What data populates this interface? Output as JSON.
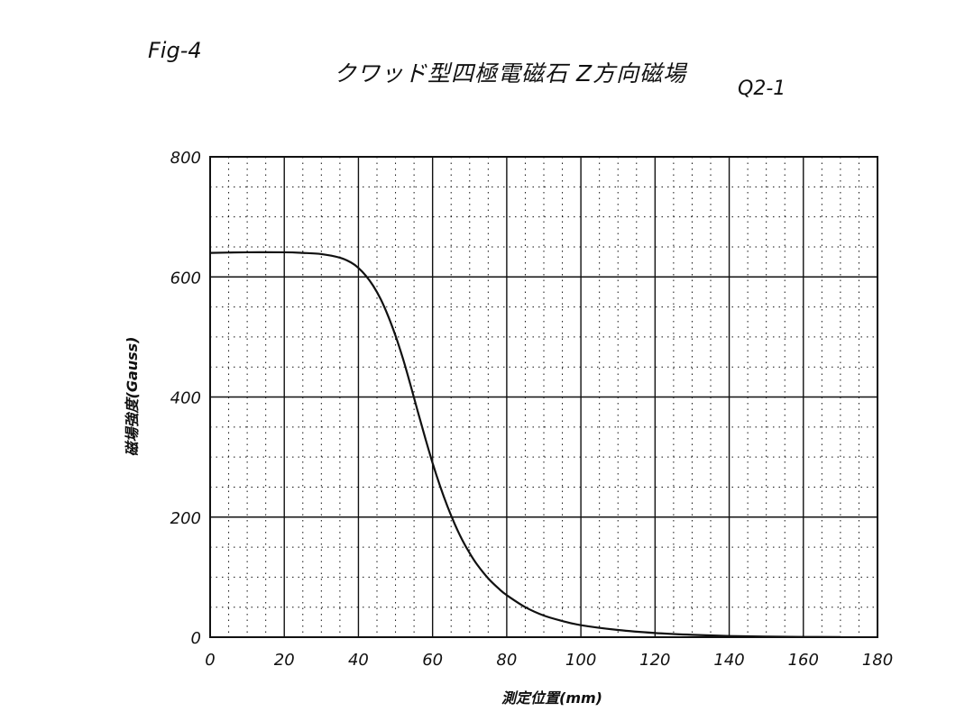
{
  "figure": {
    "label": "Fig-4",
    "code": "Q2-1"
  },
  "chart_data": {
    "type": "line",
    "title": "クワッド型四極電磁石 Z方向磁場",
    "xlabel": "測定位置(mm)",
    "ylabel": "磁場強度(Gauss)",
    "xlim": [
      0,
      180
    ],
    "ylim": [
      0,
      800
    ],
    "xticks": [
      0,
      20,
      40,
      60,
      80,
      100,
      120,
      140,
      160,
      180
    ],
    "yticks": [
      0,
      200,
      400,
      600,
      800
    ],
    "grid": true,
    "legend": "none",
    "line_color": "#111111",
    "series": [
      {
        "x": [
          0,
          10,
          20,
          25,
          30,
          35,
          38,
          40,
          42,
          44,
          46,
          48,
          50,
          52,
          54,
          56,
          58,
          60,
          62,
          64,
          66,
          68,
          70,
          72,
          75,
          78,
          80,
          85,
          90,
          95,
          100,
          110,
          120,
          130,
          140,
          150,
          160,
          170
        ],
        "y": [
          640,
          641,
          641,
          640,
          638,
          632,
          624,
          615,
          602,
          585,
          563,
          535,
          502,
          464,
          421,
          376,
          332,
          290,
          252,
          218,
          188,
          162,
          140,
          121,
          98,
          80,
          70,
          50,
          36,
          27,
          20,
          12,
          7,
          4,
          2,
          1,
          0.5,
          0.3
        ]
      }
    ]
  }
}
